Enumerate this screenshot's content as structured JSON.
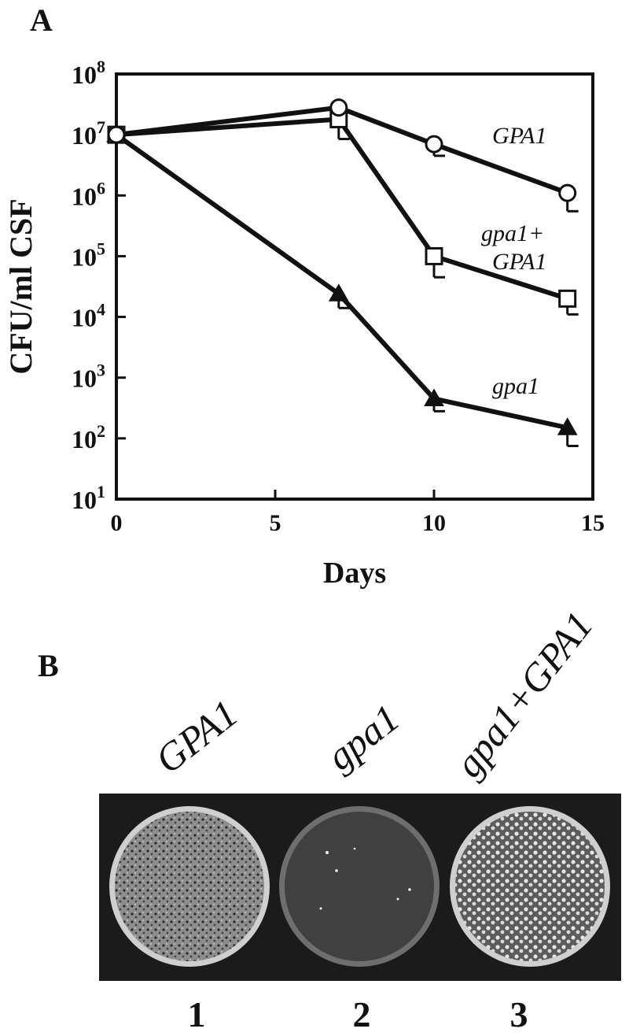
{
  "panels": {
    "a_label": "A",
    "b_label": "B"
  },
  "chart_data": {
    "type": "line",
    "xlabel": "Days",
    "ylabel": "CFU/ml CSF",
    "xlim": [
      0,
      15
    ],
    "ylim_log10": [
      1,
      8
    ],
    "y_scale": "log",
    "x_ticks": [
      "0",
      "5",
      "10",
      "15"
    ],
    "y_ticks": [
      {
        "base": "10",
        "exp": "1"
      },
      {
        "base": "10",
        "exp": "2"
      },
      {
        "base": "10",
        "exp": "3"
      },
      {
        "base": "10",
        "exp": "4"
      },
      {
        "base": "10",
        "exp": "5"
      },
      {
        "base": "10",
        "exp": "6"
      },
      {
        "base": "10",
        "exp": "7"
      },
      {
        "base": "10",
        "exp": "8"
      }
    ],
    "grid": false,
    "series": [
      {
        "key": "gpa1_wt",
        "name": "GPA1",
        "marker": "circle-open",
        "x": [
          0,
          7,
          10,
          14.2
        ],
        "y": [
          10000000,
          28000000,
          7000000,
          1100000
        ],
        "err_low": [
          null,
          null,
          4500000,
          550000
        ]
      },
      {
        "key": "complemented",
        "name_line1": "gpa1+",
        "name_line2": "GPA1",
        "marker": "square-open",
        "x": [
          0,
          7,
          10,
          14.2
        ],
        "y": [
          10000000,
          18000000,
          100000,
          20000
        ],
        "err_low": [
          null,
          8500000,
          45000,
          11000
        ]
      },
      {
        "key": "gpa1_mutant",
        "name": "gpa1",
        "marker": "triangle-filled",
        "x": [
          0,
          7,
          10,
          14.2
        ],
        "y": [
          10000000,
          24000,
          450,
          150
        ],
        "err_low": [
          null,
          14000,
          280,
          75
        ]
      }
    ]
  },
  "panel_b": {
    "plate_labels": [
      "GPA1",
      "gpa1",
      "gpa1+GPA1"
    ],
    "lane_numbers": [
      "1",
      "2",
      "3"
    ]
  }
}
